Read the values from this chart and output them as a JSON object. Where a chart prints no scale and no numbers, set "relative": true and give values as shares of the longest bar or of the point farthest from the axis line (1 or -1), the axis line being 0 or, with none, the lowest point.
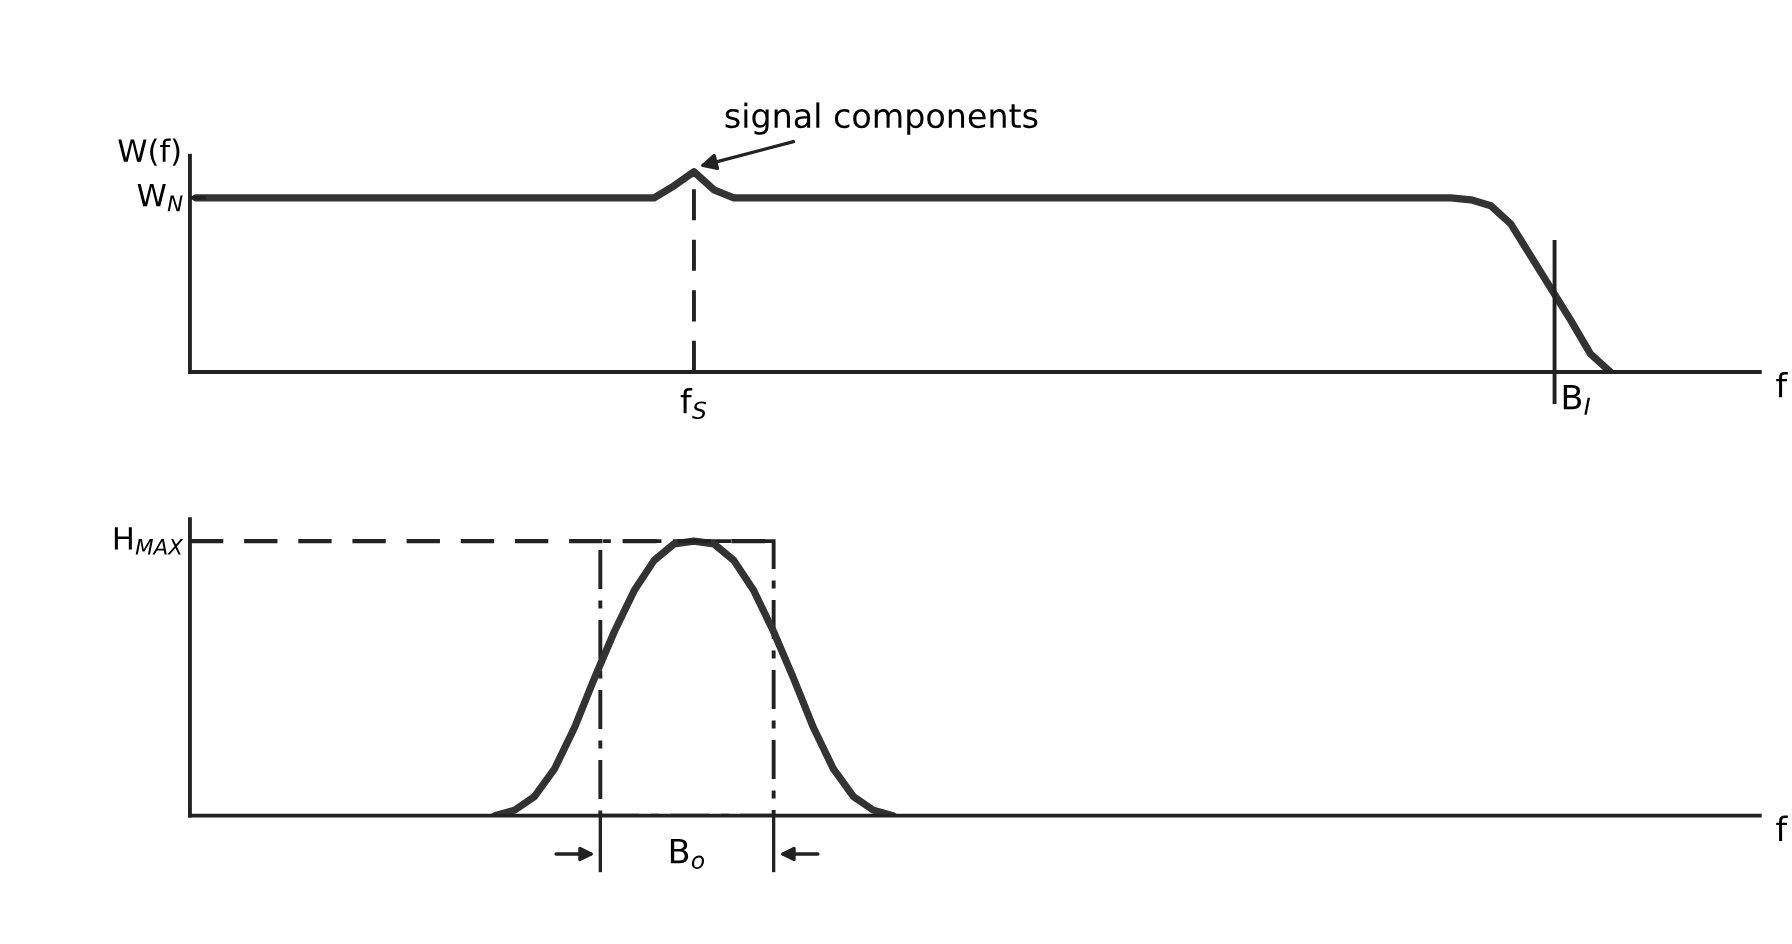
{
  "chart_data": [
    {
      "type": "line",
      "relative": true,
      "ylabel": "W(f)",
      "xlabel": "f",
      "color": "#333333",
      "grid": false,
      "legend": false,
      "categories": [
        null,
        null,
        null,
        null,
        null,
        null,
        null,
        null,
        null,
        null,
        null,
        null,
        null,
        null,
        null,
        null,
        null,
        null,
        null,
        null,
        null,
        null,
        null,
        null,
        null,
        null,
        null,
        null,
        null,
        null,
        null,
        null,
        null,
        null,
        null,
        null,
        null,
        null,
        null,
        null,
        null,
        null,
        null,
        null,
        null,
        null,
        null,
        null,
        null,
        null,
        null,
        null,
        null,
        null,
        null,
        null,
        null,
        null,
        null,
        null,
        null,
        null,
        null,
        null,
        null,
        null,
        null,
        null,
        null,
        null,
        null,
        null,
        null,
        null,
        null,
        null,
        null,
        null,
        null
      ],
      "values": [
        0.87,
        0.87,
        0.87,
        0.87,
        0.87,
        0.87,
        0.87,
        0.87,
        0.87,
        0.87,
        0.87,
        0.87,
        0.87,
        0.87,
        0.87,
        0.87,
        0.87,
        0.87,
        0.87,
        0.87,
        0.87,
        0.87,
        0.87,
        0.87,
        0.93,
        1.0,
        0.91,
        0.87,
        0.87,
        0.87,
        0.87,
        0.87,
        0.87,
        0.87,
        0.87,
        0.87,
        0.87,
        0.87,
        0.87,
        0.87,
        0.87,
        0.87,
        0.87,
        0.87,
        0.87,
        0.87,
        0.87,
        0.87,
        0.87,
        0.87,
        0.87,
        0.87,
        0.87,
        0.87,
        0.87,
        0.87,
        0.87,
        0.87,
        0.87,
        0.87,
        0.87,
        0.87,
        0.87,
        0.87,
        0.86,
        0.83,
        0.74,
        0.58,
        0.42,
        0.26,
        0.09,
        0,
        null,
        null,
        null,
        null,
        null,
        null,
        null
      ],
      "ref_lines": [
        {
          "axis": "y",
          "value": 0.87,
          "label": "W$_{N}$"
        }
      ],
      "annotations": [
        "signal components",
        "f$_{S}$",
        "B$_{I}$"
      ]
    },
    {
      "type": "line",
      "relative": true,
      "xlabel": "f",
      "color": "#333333",
      "grid": false,
      "legend": false,
      "categories": [
        null,
        null,
        null,
        null,
        null,
        null,
        null,
        null,
        null,
        null,
        null,
        null,
        null,
        null,
        null,
        null,
        null,
        null,
        null,
        null,
        null,
        null,
        null,
        null,
        null,
        null,
        null,
        null,
        null,
        null,
        null,
        null,
        null,
        null,
        null,
        null,
        null,
        null,
        null,
        null,
        null,
        null,
        null,
        null,
        null,
        null,
        null,
        null,
        null,
        null,
        null,
        null,
        null,
        null,
        null,
        null,
        null,
        null,
        null,
        null,
        null,
        null,
        null,
        null,
        null,
        null,
        null,
        null,
        null,
        null,
        null,
        null,
        null,
        null,
        null,
        null,
        null,
        null,
        null
      ],
      "values": [
        null,
        null,
        null,
        null,
        null,
        null,
        null,
        null,
        null,
        null,
        null,
        null,
        null,
        null,
        null,
        0,
        0.02,
        0.07,
        0.17,
        0.32,
        0.5,
        0.67,
        0.82,
        0.93,
        0.99,
        1.0,
        0.99,
        0.93,
        0.82,
        0.67,
        0.5,
        0.32,
        0.17,
        0.07,
        0.02,
        0,
        null,
        null,
        null,
        null,
        null,
        null,
        null,
        null,
        null,
        null,
        null,
        null,
        null,
        null,
        null,
        null,
        null,
        null,
        null,
        null,
        null,
        null,
        null,
        null,
        null,
        null,
        null,
        null,
        null,
        null,
        null,
        null,
        null,
        null,
        null,
        null,
        null,
        null,
        null,
        null,
        null,
        null,
        null
      ],
      "ref_lines": [
        {
          "axis": "y",
          "value": 1.0,
          "label": "H$_{MAX}$",
          "line_style": "dashed"
        }
      ],
      "annotations": [
        "B$_{o}$"
      ]
    }
  ]
}
